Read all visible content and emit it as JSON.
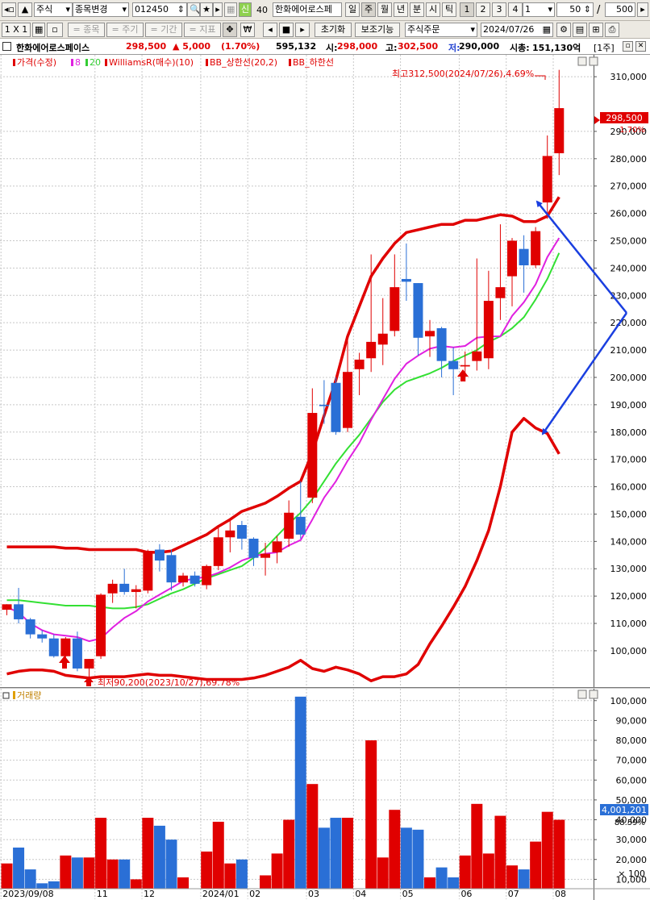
{
  "toolbar": {
    "market": "주식",
    "change_stock": "종목변경",
    "code": "012450",
    "shin_badge": "신",
    "num_40": "40",
    "stock_name": "한화에어로스페",
    "periods": [
      "일",
      "주",
      "월",
      "년",
      "분",
      "시",
      "틱"
    ],
    "nums": [
      "1",
      "2",
      "3",
      "4"
    ],
    "period_input": "1",
    "count_input": "50",
    "slash": "/",
    "total_input": "500"
  },
  "toolbar2": {
    "layout": "1 X 1",
    "stock_item": "= 종목",
    "period_item": "= 주기",
    "range_item": "= 기간",
    "indicator_item": "= 지표",
    "currency_icon": "₩",
    "reset": "초기화",
    "assist": "보조기능",
    "order": "주식주문",
    "date": "2024/07/26"
  },
  "info": {
    "name": "한화에어로스페이스",
    "price": "298,500",
    "change": "▲ 5,000",
    "change_pct": "(1.70%)",
    "volume": "595,132",
    "open_label": "시:",
    "open": "298,000",
    "high_label": "고:",
    "high": "302,500",
    "low_label": "저:",
    "low": "290,000",
    "mcap_label": "시총:",
    "mcap": "151,130억",
    "unit": "[1주]"
  },
  "legend": {
    "price": "가격(수정)",
    "ma8": "8",
    "ma20": "20",
    "williams": "WilliamsR(매수)(10)",
    "bb_upper": "BB_상한선(20,2)",
    "bb_lower": "BB_하한선"
  },
  "volume_legend": "거래량",
  "annotations": {
    "high": "최고312,500(2024/07/26),4.69%",
    "low": "최저90,200(2023/10/27),69.78%"
  },
  "price_box": {
    "price": "298,500",
    "pct": "1.70%"
  },
  "volume_box": {
    "value": "4,001,201",
    "pct": "88.59%"
  },
  "colors": {
    "up": "#e00000",
    "down": "#2a6fd6",
    "ma8": "#e020e0",
    "ma20": "#33e033",
    "bb": "#e00000",
    "arrow": "#1a3fe0"
  },
  "chart_data": {
    "type": "candlestick",
    "price_axis": {
      "ylim": [
        87000,
        318000
      ],
      "ticks": [
        100000,
        110000,
        120000,
        130000,
        140000,
        150000,
        160000,
        170000,
        180000,
        190000,
        200000,
        210000,
        220000,
        230000,
        240000,
        250000,
        260000,
        270000,
        280000,
        290000,
        310000
      ]
    },
    "volume_axis": {
      "ylim": [
        0,
        106000
      ],
      "ticks": [
        10000,
        20000,
        30000,
        40000,
        50000,
        60000,
        70000,
        80000,
        90000,
        100000
      ],
      "unit": "× 100"
    },
    "x_labels": [
      {
        "index": 0,
        "label": "2023/09/08"
      },
      {
        "index": 8,
        "label": "11"
      },
      {
        "index": 12,
        "label": "12"
      },
      {
        "index": 17,
        "label": "2024/01"
      },
      {
        "index": 21,
        "label": "02"
      },
      {
        "index": 26,
        "label": "03"
      },
      {
        "index": 30,
        "label": "04"
      },
      {
        "index": 34,
        "label": "05"
      },
      {
        "index": 39,
        "label": "06"
      },
      {
        "index": 43,
        "label": "07"
      },
      {
        "index": 47,
        "label": "08"
      }
    ],
    "candles": [
      {
        "o": 115000,
        "h": 117000,
        "l": 113000,
        "c": 117000
      },
      {
        "o": 117000,
        "h": 123000,
        "l": 110000,
        "c": 111500
      },
      {
        "o": 111500,
        "h": 112000,
        "l": 104500,
        "c": 106000
      },
      {
        "o": 106000,
        "h": 107500,
        "l": 103000,
        "c": 104500
      },
      {
        "o": 104500,
        "h": 106000,
        "l": 97500,
        "c": 98000
      },
      {
        "o": 98000,
        "h": 105000,
        "l": 96000,
        "c": 104500
      },
      {
        "o": 104500,
        "h": 107000,
        "l": 92500,
        "c": 93500
      },
      {
        "o": 93500,
        "h": 97000,
        "l": 90200,
        "c": 97000
      },
      {
        "o": 98000,
        "h": 121000,
        "l": 97000,
        "c": 120500
      },
      {
        "o": 121000,
        "h": 126000,
        "l": 117500,
        "c": 124500
      },
      {
        "o": 124500,
        "h": 130000,
        "l": 120500,
        "c": 121500
      },
      {
        "o": 121500,
        "h": 124000,
        "l": 115500,
        "c": 122500
      },
      {
        "o": 122000,
        "h": 137000,
        "l": 121000,
        "c": 136500
      },
      {
        "o": 137000,
        "h": 139000,
        "l": 129000,
        "c": 133000
      },
      {
        "o": 135000,
        "h": 137000,
        "l": 122000,
        "c": 125000
      },
      {
        "o": 125000,
        "h": 128500,
        "l": 123500,
        "c": 127500
      },
      {
        "o": 127500,
        "h": 129000,
        "l": 123500,
        "c": 124500
      },
      {
        "o": 124000,
        "h": 131500,
        "l": 122500,
        "c": 131000
      },
      {
        "o": 131000,
        "h": 145000,
        "l": 129500,
        "c": 141500
      },
      {
        "o": 141500,
        "h": 148500,
        "l": 136000,
        "c": 144000
      },
      {
        "o": 146000,
        "h": 147500,
        "l": 137000,
        "c": 141000
      },
      {
        "o": 141000,
        "h": 141500,
        "l": 131000,
        "c": 134000
      },
      {
        "o": 134000,
        "h": 139500,
        "l": 127500,
        "c": 135500
      },
      {
        "o": 136000,
        "h": 142000,
        "l": 132000,
        "c": 140000
      },
      {
        "o": 141000,
        "h": 155000,
        "l": 138000,
        "c": 150500
      },
      {
        "o": 149000,
        "h": 162000,
        "l": 141000,
        "c": 142500
      },
      {
        "o": 156000,
        "h": 196000,
        "l": 154000,
        "c": 187000
      },
      {
        "o": 190000,
        "h": 199000,
        "l": 183000,
        "c": 189500
      },
      {
        "o": 198000,
        "h": 200000,
        "l": 179000,
        "c": 180000
      },
      {
        "o": 181500,
        "h": 214000,
        "l": 180000,
        "c": 202000
      },
      {
        "o": 203000,
        "h": 209000,
        "l": 193500,
        "c": 206500
      },
      {
        "o": 207000,
        "h": 245000,
        "l": 202000,
        "c": 213000
      },
      {
        "o": 212000,
        "h": 229000,
        "l": 204500,
        "c": 216000
      },
      {
        "o": 217000,
        "h": 245000,
        "l": 215000,
        "c": 233000
      },
      {
        "o": 236000,
        "h": 249000,
        "l": 228000,
        "c": 235000
      },
      {
        "o": 234500,
        "h": 234500,
        "l": 208000,
        "c": 214500
      },
      {
        "o": 215000,
        "h": 221000,
        "l": 207500,
        "c": 217000
      },
      {
        "o": 218000,
        "h": 218500,
        "l": 200000,
        "c": 206000
      },
      {
        "o": 206000,
        "h": 211000,
        "l": 193500,
        "c": 203000
      },
      {
        "o": 204000,
        "h": 209500,
        "l": 198500,
        "c": 204500
      },
      {
        "o": 206000,
        "h": 243500,
        "l": 202500,
        "c": 209500
      },
      {
        "o": 207000,
        "h": 239000,
        "l": 203000,
        "c": 228000
      },
      {
        "o": 229000,
        "h": 256000,
        "l": 221000,
        "c": 233000
      },
      {
        "o": 237000,
        "h": 251000,
        "l": 226000,
        "c": 250000
      },
      {
        "o": 247000,
        "h": 252000,
        "l": 231000,
        "c": 241000
      },
      {
        "o": 241000,
        "h": 255000,
        "l": 240000,
        "c": 253500
      },
      {
        "o": 264000,
        "h": 288500,
        "l": 258000,
        "c": 281000
      },
      {
        "o": 282000,
        "h": 312500,
        "l": 274000,
        "c": 298500
      }
    ],
    "ma8": [
      116000,
      114000,
      110000,
      107500,
      106000,
      105500,
      105000,
      103500,
      104500,
      108500,
      112000,
      114500,
      118000,
      120500,
      123000,
      125500,
      126500,
      127000,
      128500,
      130500,
      133000,
      134500,
      135500,
      136000,
      138500,
      140500,
      148000,
      156000,
      162000,
      169500,
      176000,
      184500,
      192000,
      199500,
      205000,
      208000,
      210500,
      211500,
      211000,
      211500,
      214500,
      215000,
      215000,
      222500,
      227500,
      234000,
      244000,
      251000
    ],
    "ma20": [
      118500,
      118500,
      118000,
      117500,
      117000,
      116500,
      116500,
      116500,
      116000,
      115500,
      115500,
      116000,
      117000,
      119000,
      121000,
      122500,
      124500,
      126500,
      128000,
      129500,
      131000,
      134000,
      137500,
      142000,
      146500,
      150500,
      155500,
      162000,
      168500,
      174000,
      179000,
      185000,
      191000,
      195500,
      198500,
      200000,
      201500,
      203500,
      206000,
      208000,
      210000,
      213000,
      215000,
      218000,
      222000,
      228500,
      236000,
      245500
    ],
    "bb_upper": [
      138000,
      138000,
      138000,
      138000,
      138000,
      137500,
      137500,
      137000,
      137000,
      137000,
      137000,
      137000,
      136000,
      136000,
      136500,
      138500,
      140500,
      142500,
      145500,
      148000,
      151000,
      152500,
      154000,
      156500,
      159500,
      162000,
      172500,
      186000,
      199000,
      215000,
      226000,
      237000,
      243500,
      249000,
      253000,
      254000,
      255000,
      256000,
      256000,
      257500,
      257500,
      258500,
      259500,
      259000,
      257000,
      257000,
      259000,
      266000
    ],
    "bb_lower": [
      91500,
      92500,
      93000,
      93000,
      92500,
      91000,
      90500,
      90000,
      90500,
      90500,
      90500,
      91000,
      91500,
      91000,
      91000,
      90500,
      90000,
      89500,
      89500,
      89500,
      89500,
      90000,
      91000,
      92500,
      94000,
      96500,
      93500,
      92500,
      94000,
      93000,
      91500,
      89000,
      90500,
      90500,
      91500,
      95000,
      102500,
      109000,
      116000,
      123500,
      133000,
      144000,
      160000,
      180000,
      185000,
      181500,
      179500,
      172000
    ],
    "volume": [
      18000,
      26000,
      15000,
      8000,
      9000,
      22000,
      21000,
      21000,
      41000,
      20000,
      20000,
      10000,
      41000,
      37000,
      30000,
      11000,
      5000,
      24000,
      39000,
      18000,
      20000,
      0,
      12000,
      23000,
      40000,
      102000,
      58000,
      36000,
      41000,
      41000,
      0,
      80000,
      21000,
      45000,
      36000,
      35000,
      11000,
      16000,
      11000,
      22000,
      48000,
      23000,
      42000,
      17000,
      15000,
      29000,
      44000,
      40000
    ]
  }
}
